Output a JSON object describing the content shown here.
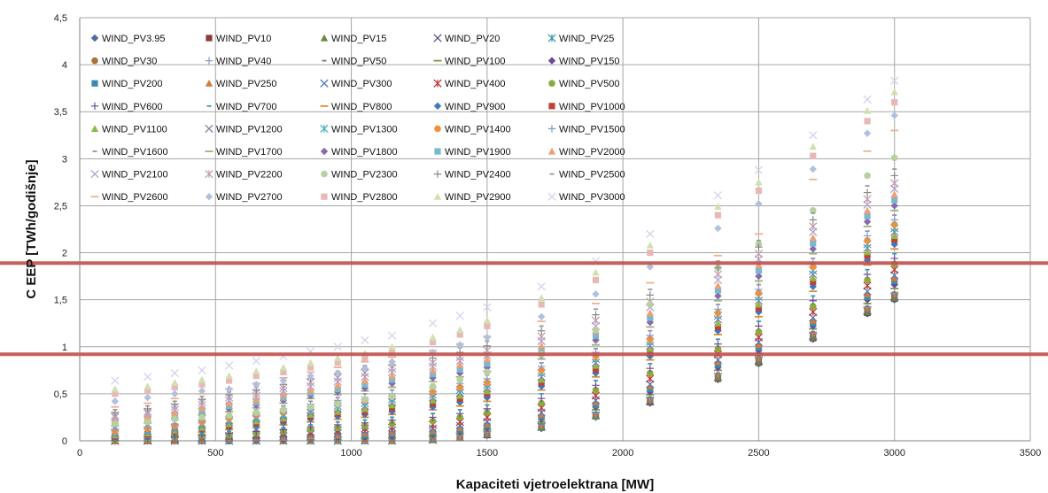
{
  "chart_data": {
    "type": "scatter",
    "xlabel": "Kapaciteti vjetroelektrana [MW]",
    "ylabel": "C EEP [TWh/godišnje]",
    "xlim": [
      0,
      3500
    ],
    "ylim": [
      0,
      4.5
    ],
    "x_ticks": [
      "0",
      "500",
      "1000",
      "1500",
      "2000",
      "2500",
      "3000",
      "3500"
    ],
    "y_ticks": [
      "0",
      "0,5",
      "1",
      "1,5",
      "2",
      "2,5",
      "3",
      "3,5",
      "4",
      "4,5"
    ],
    "grid": true,
    "legend_position": "inside-top-left",
    "x": [
      130,
      250,
      350,
      450,
      550,
      650,
      750,
      850,
      950,
      1050,
      1150,
      1300,
      1400,
      1500,
      1700,
      1900,
      2100,
      2350,
      2500,
      2700,
      2900,
      3000
    ],
    "reference_lines": [
      {
        "y": 1.89,
        "color": "#c0504d"
      },
      {
        "y": 0.92,
        "color": "#c0504d"
      }
    ],
    "series": [
      {
        "name": "WIND_PV3.95",
        "marker": "diamond",
        "color": "#4f6d9c",
        "values": [
          0,
          0,
          0,
          0,
          0,
          0,
          0,
          0,
          0,
          0,
          0,
          0.01,
          0.03,
          0.06,
          0.13,
          0.25,
          0.4,
          0.65,
          0.82,
          1.08,
          1.35,
          1.5
        ]
      },
      {
        "name": "WIND_PV10",
        "marker": "square",
        "color": "#8b3a3a",
        "values": [
          0,
          0,
          0,
          0,
          0,
          0,
          0,
          0,
          0,
          0,
          0,
          0.01,
          0.03,
          0.06,
          0.14,
          0.26,
          0.41,
          0.66,
          0.83,
          1.09,
          1.36,
          1.51
        ]
      },
      {
        "name": "WIND_PV15",
        "marker": "triangle",
        "color": "#6a8a3a",
        "values": [
          0,
          0,
          0,
          0,
          0,
          0,
          0,
          0,
          0,
          0,
          0,
          0.01,
          0.03,
          0.07,
          0.14,
          0.26,
          0.42,
          0.67,
          0.84,
          1.1,
          1.37,
          1.52
        ]
      },
      {
        "name": "WIND_PV20",
        "marker": "x",
        "color": "#5a4a8a",
        "values": [
          0,
          0,
          0,
          0,
          0,
          0,
          0,
          0,
          0,
          0,
          0,
          0.01,
          0.04,
          0.07,
          0.15,
          0.27,
          0.42,
          0.68,
          0.85,
          1.11,
          1.38,
          1.53
        ]
      },
      {
        "name": "WIND_PV25",
        "marker": "star",
        "color": "#3a9aaa",
        "values": [
          0,
          0,
          0,
          0,
          0,
          0,
          0,
          0,
          0,
          0,
          0,
          0.02,
          0.04,
          0.07,
          0.15,
          0.27,
          0.43,
          0.68,
          0.86,
          1.12,
          1.39,
          1.54
        ]
      },
      {
        "name": "WIND_PV30",
        "marker": "circle",
        "color": "#b0703a",
        "values": [
          0,
          0,
          0,
          0,
          0,
          0,
          0,
          0,
          0,
          0,
          0,
          0.02,
          0.04,
          0.08,
          0.16,
          0.28,
          0.44,
          0.69,
          0.87,
          1.13,
          1.4,
          1.55
        ]
      },
      {
        "name": "WIND_PV40",
        "marker": "plus",
        "color": "#8a9ac0",
        "values": [
          0,
          0,
          0,
          0,
          0,
          0,
          0,
          0,
          0,
          0,
          0.01,
          0.03,
          0.05,
          0.09,
          0.17,
          0.29,
          0.45,
          0.71,
          0.89,
          1.15,
          1.42,
          1.57
        ]
      },
      {
        "name": "WIND_PV50",
        "marker": "dash",
        "color": "#777777",
        "values": [
          0,
          0,
          0,
          0,
          0,
          0,
          0,
          0,
          0,
          0,
          0.01,
          0.03,
          0.06,
          0.1,
          0.18,
          0.3,
          0.46,
          0.72,
          0.9,
          1.16,
          1.43,
          1.58
        ]
      },
      {
        "name": "WIND_PV100",
        "marker": "longdash",
        "color": "#7a9a3a",
        "values": [
          0,
          0,
          0,
          0,
          0,
          0,
          0,
          0.01,
          0.01,
          0.02,
          0.03,
          0.05,
          0.08,
          0.12,
          0.2,
          0.33,
          0.49,
          0.75,
          0.93,
          1.19,
          1.46,
          1.62
        ]
      },
      {
        "name": "WIND_PV150",
        "marker": "diamond",
        "color": "#6a4a9a",
        "values": [
          0,
          0,
          0,
          0,
          0,
          0.01,
          0.01,
          0.02,
          0.03,
          0.04,
          0.05,
          0.07,
          0.1,
          0.14,
          0.23,
          0.36,
          0.52,
          0.78,
          0.96,
          1.22,
          1.5,
          1.66
        ]
      },
      {
        "name": "WIND_PV200",
        "marker": "square",
        "color": "#3a8ab0",
        "values": [
          0,
          0,
          0,
          0,
          0.01,
          0.02,
          0.03,
          0.04,
          0.05,
          0.06,
          0.07,
          0.09,
          0.12,
          0.16,
          0.25,
          0.38,
          0.55,
          0.81,
          0.99,
          1.25,
          1.53,
          1.7
        ]
      },
      {
        "name": "WIND_PV250",
        "marker": "triangle",
        "color": "#d07a3a",
        "values": [
          0,
          0,
          0,
          0.01,
          0.02,
          0.03,
          0.04,
          0.05,
          0.06,
          0.08,
          0.09,
          0.11,
          0.14,
          0.18,
          0.28,
          0.41,
          0.58,
          0.84,
          1.02,
          1.28,
          1.56,
          1.73
        ]
      },
      {
        "name": "WIND_PV300",
        "marker": "x",
        "color": "#4a7ac0",
        "values": [
          0,
          0,
          0.01,
          0.02,
          0.03,
          0.04,
          0.05,
          0.07,
          0.08,
          0.1,
          0.11,
          0.13,
          0.16,
          0.2,
          0.3,
          0.43,
          0.6,
          0.86,
          1.05,
          1.31,
          1.59,
          1.76
        ]
      },
      {
        "name": "WIND_PV400",
        "marker": "star",
        "color": "#c03a3a",
        "values": [
          0,
          0.01,
          0.02,
          0.03,
          0.05,
          0.06,
          0.08,
          0.09,
          0.11,
          0.13,
          0.14,
          0.17,
          0.2,
          0.25,
          0.35,
          0.48,
          0.66,
          0.92,
          1.1,
          1.37,
          1.65,
          1.82
        ]
      },
      {
        "name": "WIND_PV500",
        "marker": "circle",
        "color": "#8aaa3a",
        "values": [
          0,
          0.01,
          0.03,
          0.05,
          0.06,
          0.08,
          0.1,
          0.12,
          0.14,
          0.16,
          0.18,
          0.21,
          0.25,
          0.3,
          0.4,
          0.54,
          0.72,
          0.98,
          1.16,
          1.43,
          1.71,
          1.88
        ]
      },
      {
        "name": "WIND_PV600",
        "marker": "plus",
        "color": "#6a4a9a",
        "values": [
          0.01,
          0.02,
          0.04,
          0.06,
          0.08,
          0.1,
          0.12,
          0.15,
          0.17,
          0.19,
          0.22,
          0.25,
          0.29,
          0.34,
          0.45,
          0.59,
          0.77,
          1.03,
          1.22,
          1.49,
          1.77,
          1.94
        ]
      },
      {
        "name": "WIND_PV700",
        "marker": "dash",
        "color": "#3a9aaa",
        "values": [
          0.02,
          0.03,
          0.05,
          0.07,
          0.1,
          0.12,
          0.14,
          0.17,
          0.2,
          0.22,
          0.25,
          0.29,
          0.33,
          0.38,
          0.5,
          0.64,
          0.82,
          1.08,
          1.27,
          1.54,
          1.82,
          1.99
        ]
      },
      {
        "name": "WIND_PV800",
        "marker": "longdash",
        "color": "#e08a2a",
        "values": [
          0.03,
          0.04,
          0.06,
          0.09,
          0.12,
          0.14,
          0.17,
          0.2,
          0.23,
          0.25,
          0.28,
          0.33,
          0.37,
          0.42,
          0.54,
          0.68,
          0.86,
          1.13,
          1.32,
          1.59,
          1.87,
          2.04
        ]
      },
      {
        "name": "WIND_PV900",
        "marker": "diamond",
        "color": "#3a7ac0",
        "values": [
          0.04,
          0.06,
          0.08,
          0.11,
          0.14,
          0.16,
          0.19,
          0.23,
          0.26,
          0.28,
          0.31,
          0.36,
          0.41,
          0.46,
          0.58,
          0.72,
          0.9,
          1.17,
          1.37,
          1.64,
          1.92,
          2.09
        ]
      },
      {
        "name": "WIND_PV1000",
        "marker": "square",
        "color": "#c0403a",
        "values": [
          0.05,
          0.07,
          0.1,
          0.13,
          0.16,
          0.19,
          0.22,
          0.26,
          0.29,
          0.31,
          0.35,
          0.4,
          0.45,
          0.5,
          0.62,
          0.76,
          0.94,
          1.21,
          1.41,
          1.69,
          1.97,
          2.14
        ]
      },
      {
        "name": "WIND_PV1100",
        "marker": "triangle",
        "color": "#8aba4a",
        "values": [
          0.06,
          0.08,
          0.11,
          0.14,
          0.18,
          0.21,
          0.24,
          0.28,
          0.31,
          0.34,
          0.38,
          0.43,
          0.48,
          0.53,
          0.65,
          0.8,
          0.98,
          1.25,
          1.45,
          1.73,
          2.01,
          2.18
        ]
      },
      {
        "name": "WIND_PV1200",
        "marker": "x",
        "color": "#8a7aaa",
        "values": [
          0.07,
          0.09,
          0.12,
          0.16,
          0.2,
          0.23,
          0.26,
          0.3,
          0.34,
          0.37,
          0.41,
          0.46,
          0.51,
          0.56,
          0.68,
          0.83,
          1.01,
          1.29,
          1.49,
          1.77,
          2.05,
          2.22
        ]
      },
      {
        "name": "WIND_PV1300",
        "marker": "star",
        "color": "#4ab0c0",
        "values": [
          0.09,
          0.11,
          0.14,
          0.18,
          0.22,
          0.25,
          0.28,
          0.33,
          0.37,
          0.4,
          0.44,
          0.49,
          0.54,
          0.59,
          0.72,
          0.87,
          1.05,
          1.33,
          1.53,
          1.81,
          2.09,
          2.26
        ]
      },
      {
        "name": "WIND_PV1400",
        "marker": "circle",
        "color": "#f0903a",
        "values": [
          0.1,
          0.13,
          0.16,
          0.2,
          0.24,
          0.28,
          0.31,
          0.36,
          0.4,
          0.43,
          0.47,
          0.52,
          0.57,
          0.62,
          0.75,
          0.9,
          1.08,
          1.36,
          1.57,
          1.85,
          2.13,
          2.3
        ]
      },
      {
        "name": "WIND_PV1500",
        "marker": "plus",
        "color": "#7a9ad0",
        "values": [
          0.12,
          0.15,
          0.18,
          0.22,
          0.26,
          0.3,
          0.34,
          0.39,
          0.43,
          0.46,
          0.5,
          0.56,
          0.61,
          0.66,
          0.79,
          0.94,
          1.12,
          1.4,
          1.61,
          1.89,
          2.18,
          2.35
        ]
      },
      {
        "name": "WIND_PV1600",
        "marker": "dash",
        "color": "#a08ab0",
        "values": [
          0.14,
          0.17,
          0.21,
          0.25,
          0.29,
          0.33,
          0.37,
          0.42,
          0.46,
          0.5,
          0.54,
          0.6,
          0.65,
          0.7,
          0.83,
          0.98,
          1.17,
          1.45,
          1.66,
          1.94,
          2.23,
          2.4
        ]
      },
      {
        "name": "WIND_PV1700",
        "marker": "longdash",
        "color": "#9ab07a",
        "values": [
          0.16,
          0.19,
          0.23,
          0.27,
          0.31,
          0.35,
          0.4,
          0.45,
          0.49,
          0.53,
          0.57,
          0.63,
          0.68,
          0.74,
          0.87,
          1.02,
          1.21,
          1.49,
          1.7,
          1.99,
          2.28,
          2.45
        ]
      },
      {
        "name": "WIND_PV1800",
        "marker": "diamond",
        "color": "#8a6aaa",
        "values": [
          0.18,
          0.21,
          0.25,
          0.29,
          0.34,
          0.38,
          0.43,
          0.48,
          0.52,
          0.56,
          0.61,
          0.67,
          0.72,
          0.78,
          0.91,
          1.07,
          1.26,
          1.54,
          1.75,
          2.04,
          2.33,
          2.5
        ]
      },
      {
        "name": "WIND_PV1900",
        "marker": "square",
        "color": "#7ab8d0",
        "values": [
          0.2,
          0.23,
          0.27,
          0.32,
          0.37,
          0.41,
          0.46,
          0.51,
          0.55,
          0.6,
          0.65,
          0.71,
          0.76,
          0.82,
          0.96,
          1.12,
          1.31,
          1.6,
          1.81,
          2.1,
          2.39,
          2.56
        ]
      },
      {
        "name": "WIND_PV2000",
        "marker": "triangle",
        "color": "#f0a070",
        "values": [
          0.22,
          0.26,
          0.3,
          0.35,
          0.4,
          0.44,
          0.49,
          0.54,
          0.59,
          0.64,
          0.69,
          0.75,
          0.81,
          0.87,
          1.01,
          1.17,
          1.36,
          1.65,
          1.87,
          2.16,
          2.45,
          2.62
        ]
      },
      {
        "name": "WIND_PV2100",
        "marker": "x",
        "color": "#b0a0d0",
        "values": [
          0.25,
          0.29,
          0.33,
          0.38,
          0.43,
          0.48,
          0.53,
          0.58,
          0.63,
          0.68,
          0.73,
          0.79,
          0.85,
          0.91,
          1.06,
          1.22,
          1.42,
          1.71,
          1.93,
          2.22,
          2.51,
          2.68
        ]
      },
      {
        "name": "WIND_PV2200",
        "marker": "star",
        "color": "#c0a0b0",
        "values": [
          0.27,
          0.31,
          0.36,
          0.41,
          0.46,
          0.51,
          0.56,
          0.62,
          0.67,
          0.72,
          0.77,
          0.83,
          0.89,
          0.96,
          1.11,
          1.28,
          1.48,
          1.77,
          1.99,
          2.28,
          2.57,
          2.74
        ]
      },
      {
        "name": "WIND_PV2300",
        "marker": "circle",
        "color": "#b8d0a0",
        "values": [
          0.18,
          0.2,
          0.23,
          0.25,
          0.27,
          0.3,
          0.33,
          0.36,
          0.39,
          0.44,
          0.47,
          0.58,
          0.65,
          0.73,
          0.92,
          1.18,
          1.45,
          1.84,
          2.09,
          2.45,
          2.82,
          3.01
        ]
      },
      {
        "name": "WIND_PV2400",
        "marker": "plus",
        "color": "#8a8a8a",
        "values": [
          0.3,
          0.34,
          0.39,
          0.44,
          0.49,
          0.54,
          0.6,
          0.66,
          0.71,
          0.76,
          0.81,
          0.88,
          0.94,
          1.01,
          1.17,
          1.34,
          1.55,
          1.84,
          2.06,
          2.35,
          2.64,
          2.82
        ]
      },
      {
        "name": "WIND_PV2500",
        "marker": "dash",
        "color": "#9a9a9a",
        "values": [
          0.33,
          0.37,
          0.42,
          0.47,
          0.52,
          0.57,
          0.63,
          0.69,
          0.74,
          0.8,
          0.85,
          0.92,
          0.99,
          1.06,
          1.22,
          1.4,
          1.61,
          1.91,
          2.13,
          2.42,
          2.71,
          2.89
        ]
      },
      {
        "name": "WIND_PV2600",
        "marker": "longdash",
        "color": "#f0b090",
        "values": [
          0.36,
          0.4,
          0.45,
          0.5,
          0.55,
          0.61,
          0.67,
          0.73,
          0.78,
          0.84,
          0.89,
          0.96,
          1.03,
          1.11,
          1.27,
          1.46,
          1.68,
          1.97,
          2.2,
          2.78,
          3.08,
          3.3
        ]
      },
      {
        "name": "WIND_PV2700",
        "marker": "diamond",
        "color": "#b0c0e0",
        "values": [
          0.42,
          0.46,
          0.5,
          0.53,
          0.55,
          0.6,
          0.64,
          0.69,
          0.72,
          0.77,
          0.84,
          0.94,
          1.02,
          1.1,
          1.32,
          1.56,
          1.85,
          2.26,
          2.52,
          2.89,
          3.27,
          3.46
        ]
      },
      {
        "name": "WIND_PV2800",
        "marker": "square",
        "color": "#e8b8b8",
        "values": [
          0.5,
          0.53,
          0.57,
          0.6,
          0.64,
          0.69,
          0.73,
          0.78,
          0.83,
          0.88,
          0.95,
          1.05,
          1.13,
          1.22,
          1.45,
          1.71,
          2.0,
          2.4,
          2.66,
          3.03,
          3.4,
          3.6
        ]
      },
      {
        "name": "WIND_PV2900",
        "marker": "triangle",
        "color": "#d0e0b0",
        "values": [
          0.55,
          0.58,
          0.62,
          0.65,
          0.69,
          0.74,
          0.78,
          0.83,
          0.88,
          0.93,
          1.0,
          1.1,
          1.18,
          1.28,
          1.52,
          1.79,
          2.08,
          2.49,
          2.75,
          3.13,
          3.51,
          3.71
        ]
      },
      {
        "name": "WIND_PV3000",
        "marker": "x",
        "color": "#d8d0e8",
        "values": [
          0.64,
          0.68,
          0.72,
          0.75,
          0.8,
          0.85,
          0.9,
          0.95,
          1.0,
          1.07,
          1.12,
          1.25,
          1.33,
          1.42,
          1.64,
          1.91,
          2.2,
          2.61,
          2.88,
          3.25,
          3.63,
          3.83
        ]
      }
    ]
  }
}
